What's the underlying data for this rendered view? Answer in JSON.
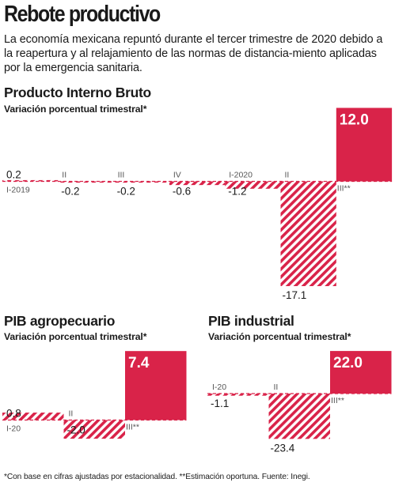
{
  "header": {
    "title": "Rebote productivo",
    "subtitle": "La economía mexicana repuntó durante el tercer trimestre de 2020 debido a la reapertura y al relajamiento de las normas de distancia-miento aplicadas por la emergencia sanitaria."
  },
  "footnote": "*Con base en cifras ajustadas por estacionalidad. **Estimación oportuna. Fuente: Inegi.",
  "colors": {
    "accent": "#d92349",
    "text": "#1a1a1a"
  },
  "chart_data": [
    {
      "type": "bar",
      "title": "Producto Interno Bruto",
      "subtitle": "Variación porcentual trimestral*",
      "categories": [
        "I-2019",
        "II",
        "III",
        "IV",
        "I-2020",
        "II",
        "III**"
      ],
      "values": [
        0.2,
        -0.2,
        -0.2,
        -0.6,
        -1.2,
        -17.1,
        12.0
      ],
      "value_labels": [
        "0.2",
        "-0.2",
        "-0.2",
        "-0.6",
        "-1.2",
        "-17.1",
        "12.0"
      ]
    },
    {
      "type": "bar",
      "title": "PIB agropecuario",
      "subtitle": "Variación porcentual trimestral*",
      "categories": [
        "I-20",
        "II",
        "III**"
      ],
      "values": [
        0.8,
        -2.0,
        7.4
      ],
      "value_labels": [
        "0.8",
        "-2.0",
        "7.4"
      ]
    },
    {
      "type": "bar",
      "title": "PIB industrial",
      "subtitle": "Variación porcentual trimestral*",
      "categories": [
        "I-20",
        "II",
        "III**"
      ],
      "values": [
        -1.1,
        -23.4,
        22.0
      ],
      "value_labels": [
        "-1.1",
        "-23.4",
        "22.0"
      ]
    }
  ]
}
